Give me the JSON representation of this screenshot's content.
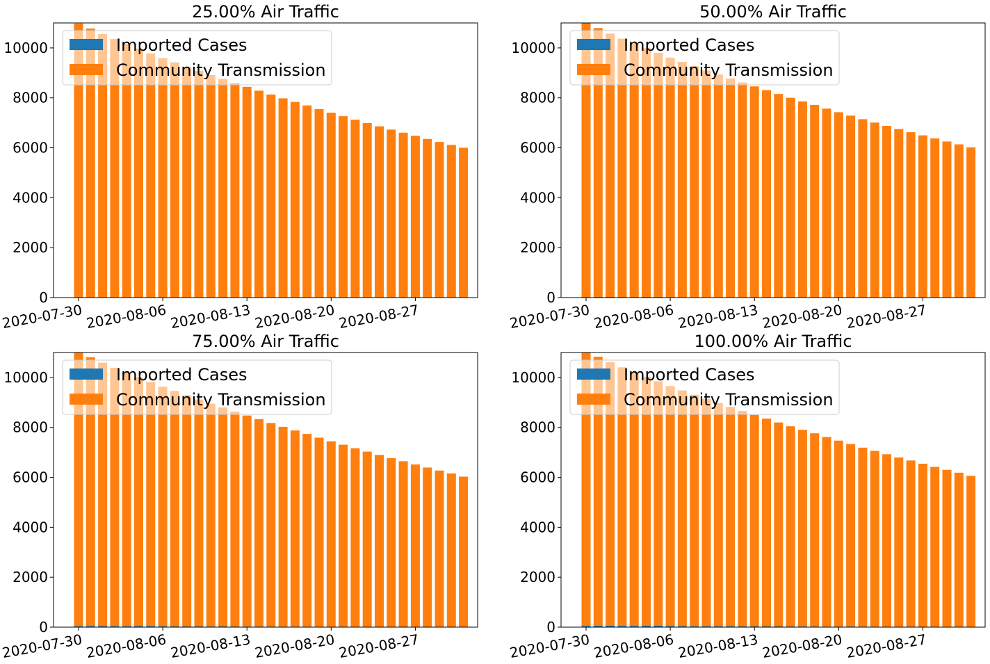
{
  "figure": {
    "colors": {
      "imported": "#1f77b4",
      "community": "#ff7f0e",
      "axis": "#000000",
      "legend_border": "#cccccc"
    }
  },
  "chart_data": [
    {
      "type": "bar",
      "stacked": true,
      "title": "25.00% Air Traffic",
      "x": [
        "2020-07-30",
        "2020-07-31",
        "2020-08-01",
        "2020-08-02",
        "2020-08-03",
        "2020-08-04",
        "2020-08-05",
        "2020-08-06",
        "2020-08-07",
        "2020-08-08",
        "2020-08-09",
        "2020-08-10",
        "2020-08-11",
        "2020-08-12",
        "2020-08-13",
        "2020-08-14",
        "2020-08-15",
        "2020-08-16",
        "2020-08-17",
        "2020-08-18",
        "2020-08-19",
        "2020-08-20",
        "2020-08-21",
        "2020-08-22",
        "2020-08-23",
        "2020-08-24",
        "2020-08-25",
        "2020-08-26",
        "2020-08-27",
        "2020-08-28",
        "2020-08-29",
        "2020-08-30",
        "2020-08-31"
      ],
      "xticks": [
        "2020-07-30",
        "2020-08-06",
        "2020-08-13",
        "2020-08-20",
        "2020-08-27"
      ],
      "yticks": [
        0,
        2000,
        4000,
        6000,
        8000,
        10000
      ],
      "ylim": [
        0,
        11000
      ],
      "legend": "upper-left",
      "series": [
        {
          "name": "Imported Cases",
          "values": [
            12,
            15,
            14,
            13,
            12,
            14,
            15,
            11,
            10,
            9,
            9,
            8,
            9,
            8,
            7,
            7,
            7,
            6,
            6,
            6,
            5,
            5,
            6,
            5,
            5,
            4,
            4,
            5,
            4,
            4,
            4,
            4,
            3
          ]
        },
        {
          "name": "Community Transmission",
          "values": [
            10965,
            10760,
            10540,
            10340,
            10150,
            9955,
            9765,
            9580,
            9410,
            9240,
            9070,
            8905,
            8745,
            8585,
            8435,
            8280,
            8125,
            7975,
            7830,
            7690,
            7545,
            7400,
            7260,
            7120,
            6985,
            6855,
            6725,
            6600,
            6475,
            6350,
            6230,
            6110,
            6000
          ]
        }
      ]
    },
    {
      "type": "bar",
      "stacked": true,
      "title": "50.00% Air Traffic",
      "x": [
        "2020-07-30",
        "2020-07-31",
        "2020-08-01",
        "2020-08-02",
        "2020-08-03",
        "2020-08-04",
        "2020-08-05",
        "2020-08-06",
        "2020-08-07",
        "2020-08-08",
        "2020-08-09",
        "2020-08-10",
        "2020-08-11",
        "2020-08-12",
        "2020-08-13",
        "2020-08-14",
        "2020-08-15",
        "2020-08-16",
        "2020-08-17",
        "2020-08-18",
        "2020-08-19",
        "2020-08-20",
        "2020-08-21",
        "2020-08-22",
        "2020-08-23",
        "2020-08-24",
        "2020-08-25",
        "2020-08-26",
        "2020-08-27",
        "2020-08-28",
        "2020-08-29",
        "2020-08-30",
        "2020-08-31"
      ],
      "xticks": [
        "2020-07-30",
        "2020-08-06",
        "2020-08-13",
        "2020-08-20",
        "2020-08-27"
      ],
      "yticks": [
        0,
        2000,
        4000,
        6000,
        8000,
        10000
      ],
      "ylim": [
        0,
        11000
      ],
      "legend": "upper-left",
      "series": [
        {
          "name": "Imported Cases",
          "values": [
            25,
            30,
            28,
            26,
            25,
            28,
            30,
            22,
            20,
            18,
            18,
            16,
            18,
            16,
            14,
            14,
            14,
            12,
            12,
            12,
            10,
            10,
            12,
            10,
            10,
            8,
            8,
            10,
            8,
            8,
            8,
            8,
            6
          ]
        },
        {
          "name": "Community Transmission",
          "values": [
            10965,
            10765,
            10545,
            10345,
            10155,
            9960,
            9770,
            9590,
            9420,
            9250,
            9080,
            8915,
            8760,
            8600,
            8445,
            8295,
            8140,
            7990,
            7845,
            7705,
            7560,
            7415,
            7275,
            7135,
            7000,
            6870,
            6740,
            6615,
            6490,
            6365,
            6245,
            6130,
            6010
          ]
        }
      ]
    },
    {
      "type": "bar",
      "stacked": true,
      "title": "75.00% Air Traffic",
      "x": [
        "2020-07-30",
        "2020-07-31",
        "2020-08-01",
        "2020-08-02",
        "2020-08-03",
        "2020-08-04",
        "2020-08-05",
        "2020-08-06",
        "2020-08-07",
        "2020-08-08",
        "2020-08-09",
        "2020-08-10",
        "2020-08-11",
        "2020-08-12",
        "2020-08-13",
        "2020-08-14",
        "2020-08-15",
        "2020-08-16",
        "2020-08-17",
        "2020-08-18",
        "2020-08-19",
        "2020-08-20",
        "2020-08-21",
        "2020-08-22",
        "2020-08-23",
        "2020-08-24",
        "2020-08-25",
        "2020-08-26",
        "2020-08-27",
        "2020-08-28",
        "2020-08-29",
        "2020-08-30",
        "2020-08-31"
      ],
      "xticks": [
        "2020-07-30",
        "2020-08-06",
        "2020-08-13",
        "2020-08-20",
        "2020-08-27"
      ],
      "yticks": [
        0,
        2000,
        4000,
        6000,
        8000,
        10000
      ],
      "ylim": [
        0,
        11000
      ],
      "legend": "upper-left",
      "series": [
        {
          "name": "Imported Cases",
          "values": [
            38,
            45,
            42,
            39,
            37,
            42,
            45,
            33,
            30,
            27,
            27,
            24,
            27,
            24,
            21,
            21,
            21,
            18,
            18,
            18,
            15,
            15,
            18,
            15,
            15,
            12,
            12,
            15,
            12,
            12,
            12,
            12,
            9
          ]
        },
        {
          "name": "Community Transmission",
          "values": [
            10965,
            10765,
            10550,
            10350,
            10160,
            9965,
            9775,
            9600,
            9430,
            9260,
            9090,
            8925,
            8770,
            8610,
            8455,
            8310,
            8155,
            8005,
            7860,
            7720,
            7575,
            7430,
            7290,
            7150,
            7015,
            6885,
            6755,
            6630,
            6505,
            6380,
            6260,
            6145,
            6020
          ]
        }
      ]
    },
    {
      "type": "bar",
      "stacked": true,
      "title": "100.00% Air Traffic",
      "x": [
        "2020-07-30",
        "2020-07-31",
        "2020-08-01",
        "2020-08-02",
        "2020-08-03",
        "2020-08-04",
        "2020-08-05",
        "2020-08-06",
        "2020-08-07",
        "2020-08-08",
        "2020-08-09",
        "2020-08-10",
        "2020-08-11",
        "2020-08-12",
        "2020-08-13",
        "2020-08-14",
        "2020-08-15",
        "2020-08-16",
        "2020-08-17",
        "2020-08-18",
        "2020-08-19",
        "2020-08-20",
        "2020-08-21",
        "2020-08-22",
        "2020-08-23",
        "2020-08-24",
        "2020-08-25",
        "2020-08-26",
        "2020-08-27",
        "2020-08-28",
        "2020-08-29",
        "2020-08-30",
        "2020-08-31"
      ],
      "xticks": [
        "2020-07-30",
        "2020-08-06",
        "2020-08-13",
        "2020-08-20",
        "2020-08-27"
      ],
      "yticks": [
        0,
        2000,
        4000,
        6000,
        8000,
        10000
      ],
      "ylim": [
        0,
        11000
      ],
      "legend": "upper-left",
      "series": [
        {
          "name": "Imported Cases",
          "values": [
            50,
            60,
            56,
            52,
            50,
            56,
            60,
            44,
            40,
            36,
            36,
            32,
            36,
            32,
            28,
            28,
            28,
            24,
            24,
            24,
            20,
            20,
            24,
            20,
            20,
            16,
            16,
            20,
            16,
            16,
            16,
            16,
            12
          ]
        },
        {
          "name": "Community Transmission",
          "values": [
            10965,
            10770,
            10555,
            10355,
            10165,
            9975,
            9785,
            9610,
            9440,
            9270,
            9105,
            8940,
            8785,
            8625,
            8470,
            8325,
            8170,
            8020,
            7880,
            7740,
            7595,
            7450,
            7310,
            7170,
            7040,
            6910,
            6780,
            6655,
            6530,
            6405,
            6285,
            6170,
            6050
          ]
        }
      ]
    }
  ]
}
